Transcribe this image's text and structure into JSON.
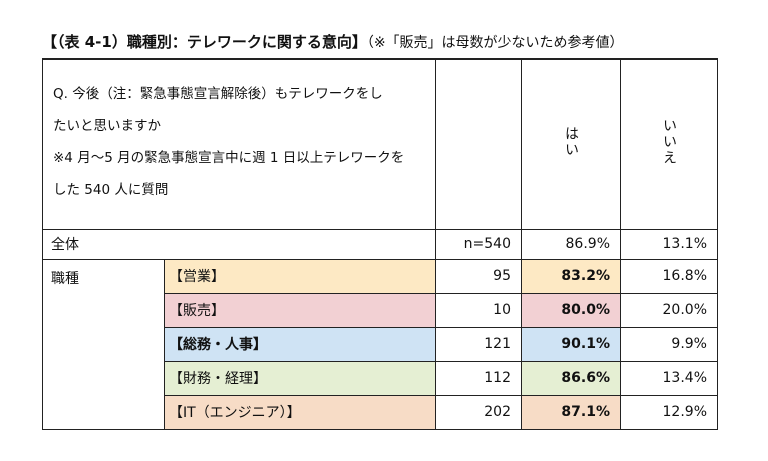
{
  "title": {
    "main": "【（表 4-1）職種別：テレワークに関する意向】",
    "note": "（※「販売」は母数が少ないため参考値）"
  },
  "header": {
    "question_line1": "Q. 今後（注：緊急事態宣言解除後）もテレワークをし",
    "question_line2": "たいと思いますか",
    "question_line3": "※4 月～5 月の緊急事態宣言中に週 1 日以上テレワークを",
    "question_line4": "した 540 人に質問",
    "col_yes": "はい",
    "col_no": "いいえ"
  },
  "total": {
    "label": "全体",
    "n": "n=540",
    "yes": "86.9%",
    "no": "13.1%"
  },
  "group_label": "職種",
  "rows": [
    {
      "label": "【営業】",
      "n": "95",
      "yes": "83.2%",
      "no": "16.8%",
      "color": "#fde9c4"
    },
    {
      "label": "【販売】",
      "n": "10",
      "yes": "80.0%",
      "no": "20.0%",
      "color": "#f2d0d3"
    },
    {
      "label": "【総務・人事】",
      "n": "121",
      "yes": "90.1%",
      "no": "9.9%",
      "color": "#cfe3f4"
    },
    {
      "label": "【財務・経理】",
      "n": "112",
      "yes": "86.6%",
      "no": "13.4%",
      "color": "#e5efd3"
    },
    {
      "label": "【IT（エンジニア）】",
      "n": "202",
      "yes": "87.1%",
      "no": "12.9%",
      "color": "#f7dcc6"
    }
  ]
}
